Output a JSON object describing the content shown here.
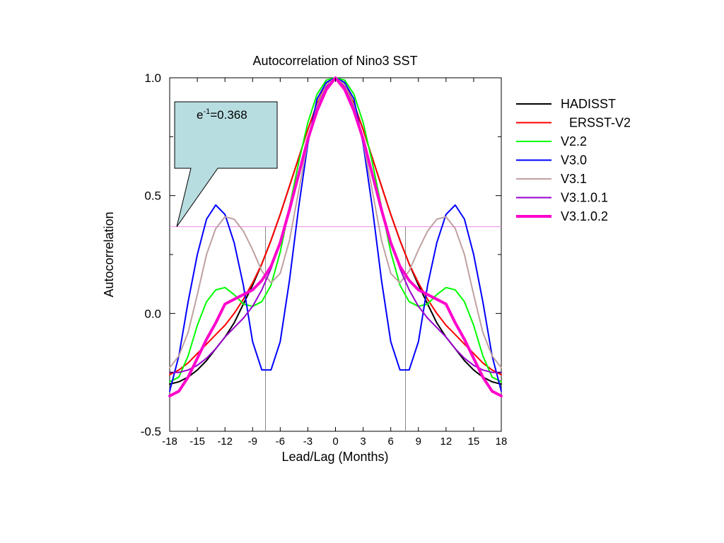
{
  "chart_data": {
    "type": "line",
    "title": "Autocorrelation of Nino3 SST",
    "xlabel": "Lead/Lag (Months)",
    "ylabel": "Autocorrelation",
    "xlim": [
      -18,
      18
    ],
    "ylim": [
      -0.5,
      1.0
    ],
    "xticks": [
      -18,
      -15,
      -12,
      -9,
      -6,
      -3,
      0,
      3,
      6,
      9,
      12,
      15,
      18
    ],
    "xtick_labels": [
      "-18",
      "-15",
      "-12",
      "-9",
      "-6",
      "-3",
      "0",
      "3",
      "6",
      "9",
      "12",
      "15",
      "18"
    ],
    "yticks": [
      -0.5,
      0.0,
      0.5,
      1.0
    ],
    "ytick_labels": [
      "-0.5",
      "0.0",
      "0.5",
      "1.0"
    ],
    "grid": false,
    "legend_position": "right",
    "x": [
      -18,
      -17,
      -16,
      -15,
      -14,
      -13,
      -12,
      -11,
      -10,
      -9,
      -8,
      -7,
      -6,
      -5,
      -4,
      -3,
      -2,
      -1,
      0,
      1,
      2,
      3,
      4,
      5,
      6,
      7,
      8,
      9,
      10,
      11,
      12,
      13,
      14,
      15,
      16,
      17,
      18
    ],
    "series": [
      {
        "name": "HADISST",
        "color": "#000000",
        "width": 2,
        "values": [
          -0.3,
          -0.29,
          -0.27,
          -0.24,
          -0.2,
          -0.15,
          -0.1,
          -0.04,
          0.04,
          0.12,
          0.21,
          0.31,
          0.42,
          0.54,
          0.66,
          0.78,
          0.89,
          0.97,
          1.0,
          0.97,
          0.89,
          0.78,
          0.66,
          0.54,
          0.42,
          0.31,
          0.21,
          0.12,
          0.04,
          -0.04,
          -0.1,
          -0.15,
          -0.2,
          -0.24,
          -0.27,
          -0.29,
          -0.3
        ]
      },
      {
        "name": "ERSST-V2",
        "color": "#ff0000",
        "width": 2,
        "values": [
          -0.26,
          -0.24,
          -0.21,
          -0.17,
          -0.13,
          -0.09,
          -0.05,
          0.0,
          0.06,
          0.13,
          0.21,
          0.31,
          0.42,
          0.54,
          0.66,
          0.78,
          0.89,
          0.97,
          1.0,
          0.97,
          0.89,
          0.78,
          0.66,
          0.54,
          0.42,
          0.31,
          0.21,
          0.13,
          0.06,
          0.0,
          -0.05,
          -0.09,
          -0.13,
          -0.17,
          -0.21,
          -0.24,
          -0.26
        ]
      },
      {
        "name": "V2.2",
        "color": "#00ff00",
        "width": 2,
        "values": [
          -0.29,
          -0.27,
          -0.18,
          -0.05,
          0.05,
          0.1,
          0.11,
          0.08,
          0.04,
          0.03,
          0.05,
          0.12,
          0.26,
          0.45,
          0.64,
          0.81,
          0.93,
          0.99,
          1.0,
          0.99,
          0.93,
          0.81,
          0.64,
          0.45,
          0.26,
          0.12,
          0.05,
          0.03,
          0.04,
          0.08,
          0.11,
          0.1,
          0.05,
          -0.05,
          -0.18,
          -0.27,
          -0.29
        ]
      },
      {
        "name": "V3.0",
        "color": "#0000ff",
        "width": 2,
        "values": [
          -0.33,
          -0.18,
          0.05,
          0.25,
          0.4,
          0.46,
          0.42,
          0.3,
          0.12,
          -0.12,
          -0.24,
          -0.24,
          -0.12,
          0.14,
          0.45,
          0.72,
          0.91,
          0.98,
          1.0,
          0.98,
          0.91,
          0.72,
          0.45,
          0.14,
          -0.12,
          -0.24,
          -0.24,
          -0.12,
          0.12,
          0.3,
          0.42,
          0.46,
          0.4,
          0.25,
          0.05,
          -0.18,
          -0.33
        ]
      },
      {
        "name": "V3.1",
        "color": "#c0a0a0",
        "width": 2,
        "values": [
          -0.23,
          -0.18,
          -0.08,
          0.08,
          0.25,
          0.36,
          0.41,
          0.4,
          0.35,
          0.27,
          0.18,
          0.13,
          0.17,
          0.31,
          0.52,
          0.73,
          0.88,
          0.97,
          1.0,
          0.97,
          0.88,
          0.73,
          0.52,
          0.31,
          0.17,
          0.13,
          0.18,
          0.27,
          0.35,
          0.4,
          0.41,
          0.36,
          0.25,
          0.08,
          -0.08,
          -0.18,
          -0.23
        ]
      },
      {
        "name": "V3.1.0.1",
        "color": "#9900cc",
        "width": 2,
        "values": [
          -0.25,
          -0.25,
          -0.24,
          -0.22,
          -0.19,
          -0.15,
          -0.1,
          -0.06,
          -0.02,
          0.03,
          0.1,
          0.19,
          0.3,
          0.43,
          0.58,
          0.74,
          0.87,
          0.96,
          1.0,
          0.96,
          0.87,
          0.74,
          0.58,
          0.43,
          0.3,
          0.19,
          0.1,
          0.03,
          -0.02,
          -0.06,
          -0.1,
          -0.15,
          -0.19,
          -0.22,
          -0.24,
          -0.25,
          -0.25
        ]
      },
      {
        "name": "V3.1.0.2",
        "color": "#ff00cc",
        "width": 4,
        "values": [
          -0.35,
          -0.33,
          -0.27,
          -0.19,
          -0.11,
          -0.04,
          0.04,
          0.06,
          0.08,
          0.1,
          0.14,
          0.2,
          0.3,
          0.44,
          0.59,
          0.74,
          0.86,
          0.95,
          1.0,
          0.95,
          0.86,
          0.74,
          0.59,
          0.44,
          0.3,
          0.2,
          0.14,
          0.1,
          0.08,
          0.06,
          0.04,
          -0.04,
          -0.11,
          -0.19,
          -0.27,
          -0.33,
          -0.35
        ]
      }
    ],
    "reference_line": {
      "y": 0.368,
      "color": "#ee88ee"
    },
    "reference_drops": {
      "x": [
        -7.6,
        7.6
      ],
      "color": "#888888"
    },
    "annotation": {
      "base": "e",
      "superscript": "-1",
      "suffix": "=0.368",
      "fill": "#b8dde0",
      "pointer_y": 0.368
    }
  }
}
